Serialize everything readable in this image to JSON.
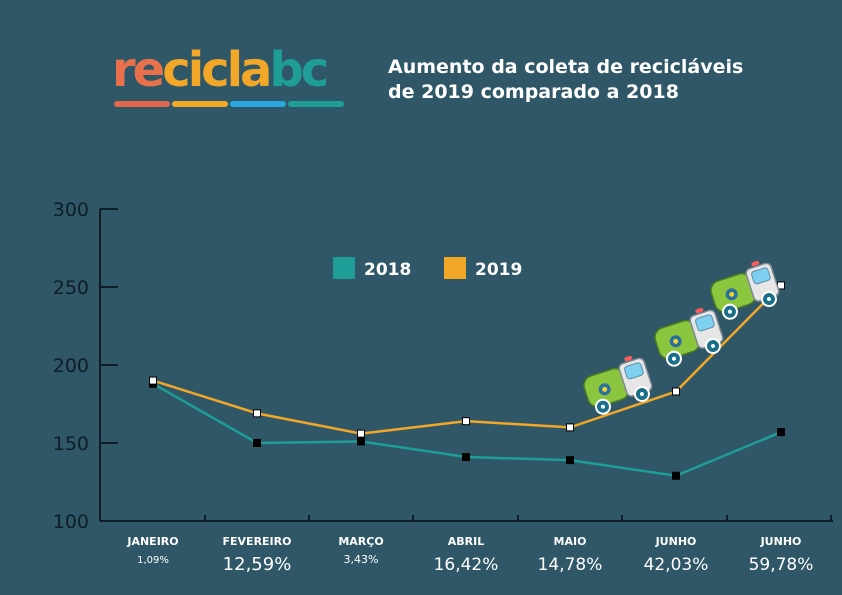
{
  "logo": {
    "parts": [
      {
        "text": "re",
        "color": "#e8704a"
      },
      {
        "text": "cicla",
        "color": "#f2a728"
      },
      {
        "text": "bc",
        "color": "#1e9e96"
      }
    ],
    "bar_colors": [
      "#e0674a",
      "#f2a728",
      "#2ba6dc",
      "#1e9e96"
    ]
  },
  "title": {
    "line1": "Aumento da coleta de recicláveis",
    "line2": "de 2019 comparado a 2018"
  },
  "colors": {
    "series_2018": "#1e9e96",
    "series_2019": "#f2a728",
    "axis": "#0e1d26",
    "truck_body": "#8cc63f",
    "truck_cab": "#e6e6e6",
    "truck_window": "#7fd0f0",
    "wheel": "#1a6f8a"
  },
  "chart_data": {
    "type": "line",
    "categories": [
      "JANEIRO",
      "FEVEREIRO",
      "MARÇO",
      "ABRIL",
      "MAIO",
      "JUNHO",
      "JUNHO"
    ],
    "percentages": [
      "1,09%",
      "12,59%",
      "3,43%",
      "16,42%",
      "14,78%",
      "42,03%",
      "59,78%"
    ],
    "series": [
      {
        "name": "2018",
        "values": [
          188,
          150,
          151,
          141,
          139,
          129,
          157
        ]
      },
      {
        "name": "2019",
        "values": [
          190,
          169,
          156,
          164,
          160,
          183,
          251
        ]
      }
    ],
    "yticks": [
      "300",
      "250",
      "200",
      "150",
      "100"
    ],
    "ylim": [
      100,
      300
    ],
    "grid": false,
    "legend_position": "top-center"
  },
  "decoration": {
    "truck_icon": "garbage-truck-icon",
    "truck_count": 3
  }
}
